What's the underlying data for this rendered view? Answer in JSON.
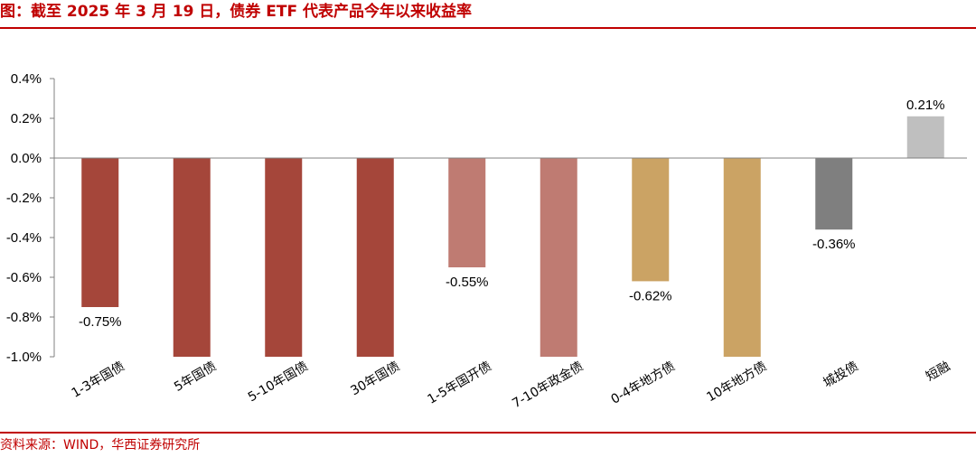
{
  "title": "图：截至 2025 年 3 月 19 日，债券 ETF 代表产品今年以来收益率",
  "source": "资料来源：WIND，华西证券研究所",
  "colors": {
    "accent": "#c00000"
  },
  "chart_data": {
    "type": "bar",
    "categories": [
      "1-3年国债",
      "5年国债",
      "5-10年国债",
      "30年国债",
      "1-5年国开债",
      "7-10年政金债",
      "0-4年地方债",
      "10年地方债",
      "城投债",
      "短融"
    ],
    "values": [
      -0.75,
      -1.0,
      -1.0,
      -1.0,
      -0.55,
      -1.0,
      -0.62,
      -1.0,
      -0.36,
      0.21
    ],
    "data_labels": [
      "-0.75%",
      "",
      "",
      "",
      "-0.55%",
      "",
      "-0.62%",
      "",
      "-0.36%",
      "0.21%"
    ],
    "bar_colors": [
      "#a5463a",
      "#a5463a",
      "#a5463a",
      "#a5463a",
      "#bf7b72",
      "#bf7b72",
      "#cba364",
      "#cba364",
      "#7f7f7f",
      "#bfbfbf"
    ],
    "yticks": [
      "0.4%",
      "0.2%",
      "0.0%",
      "-0.2%",
      "-0.4%",
      "-0.6%",
      "-0.8%",
      "-1.0%"
    ],
    "ytick_values": [
      0.4,
      0.2,
      0.0,
      -0.2,
      -0.4,
      -0.6,
      -0.8,
      -1.0
    ],
    "ylim": [
      -1.0,
      0.4
    ],
    "grid": false,
    "legend": "none"
  }
}
